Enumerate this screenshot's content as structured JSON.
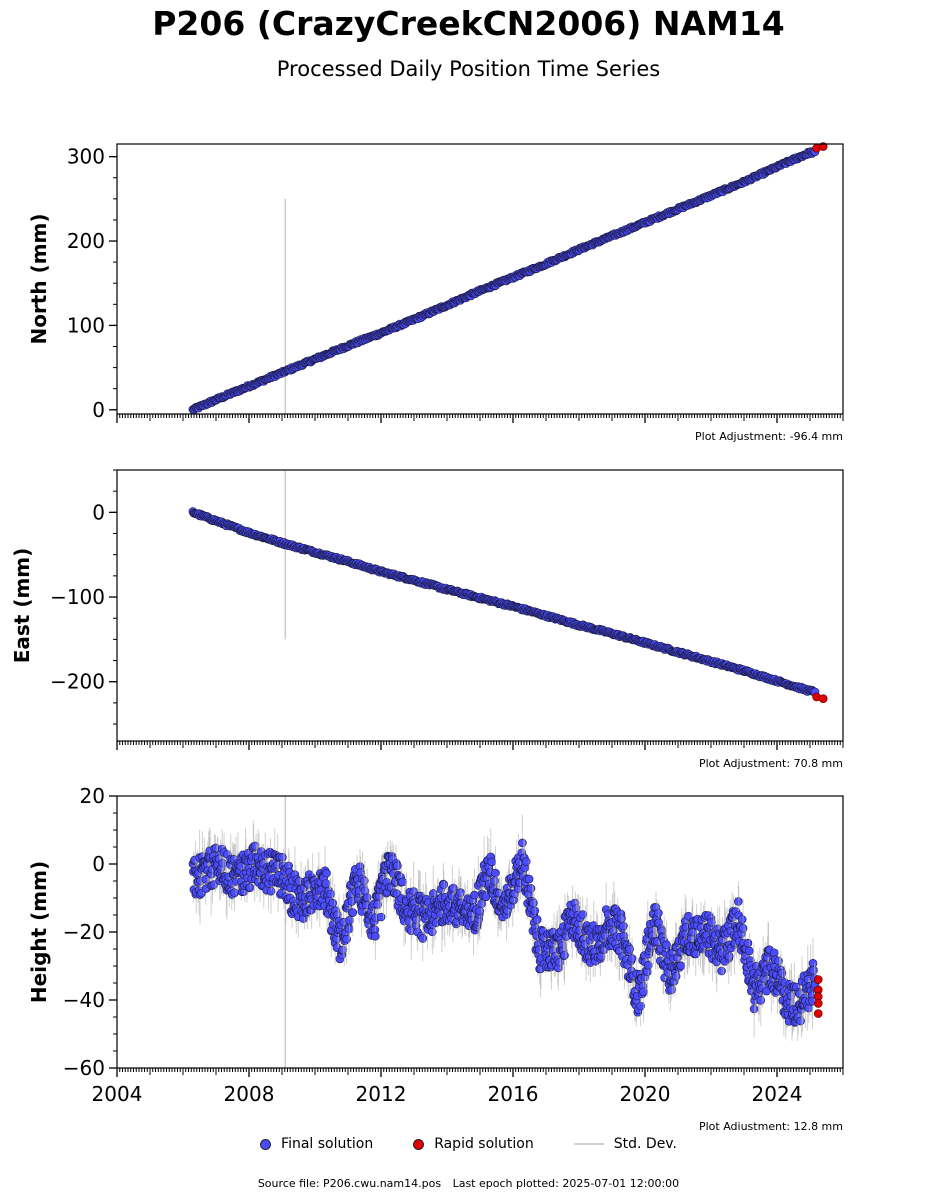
{
  "header": {
    "title": "P206 (CrazyCreekCN2006) NAM14",
    "subtitle": "Processed Daily Position Time Series"
  },
  "legend": {
    "final": "Final solution",
    "rapid": "Rapid solution",
    "std": "Std. Dev."
  },
  "footer": {
    "source": "Source file: P206.cwu.nam14.pos",
    "last_epoch": "Last epoch plotted: 2025-07-01 12:00:00"
  },
  "colors": {
    "final": "#4b4bff",
    "rapid": "#e00000",
    "marker_edge": "#1a1a3a",
    "std_dev": "#b0b0b0"
  },
  "chart_data": [
    {
      "type": "scatter",
      "ylabel": "North (mm)",
      "xlim": [
        2004,
        2026
      ],
      "ylim": [
        -5,
        315
      ],
      "yticks": [
        0,
        100,
        200,
        300
      ],
      "yticklabels": [
        "0",
        "100",
        "200",
        "300"
      ],
      "adjustment": "Plot Adjustment: -96.4 mm",
      "series": [
        {
          "name": "Final solution",
          "x": [
            2006.3,
            2007.0,
            2008.0,
            2009.0,
            2010.0,
            2011.0,
            2012.0,
            2013.0,
            2014.0,
            2015.0,
            2016.0,
            2017.0,
            2018.0,
            2019.0,
            2020.0,
            2021.0,
            2022.0,
            2023.0,
            2024.0,
            2025.0
          ],
          "y": [
            0,
            12,
            28,
            44,
            60,
            76,
            91,
            107,
            124,
            141,
            157,
            173,
            190,
            206,
            222,
            238,
            254,
            270,
            288,
            305
          ]
        },
        {
          "name": "Rapid solution",
          "x": [
            2025.2,
            2025.4
          ],
          "y": [
            310,
            312
          ]
        }
      ],
      "outlier_x": 2009.1,
      "outlier_range": [
        -5,
        250
      ]
    },
    {
      "type": "scatter",
      "ylabel": "East (mm)",
      "xlim": [
        2004,
        2026
      ],
      "ylim": [
        -270,
        50
      ],
      "yticks": [
        0,
        -100,
        -200
      ],
      "yticklabels": [
        "0",
        "−100",
        "−200"
      ],
      "adjustment": "Plot Adjustment: 70.8 mm",
      "series": [
        {
          "name": "Final solution",
          "x": [
            2006.3,
            2007.0,
            2008.0,
            2009.0,
            2010.0,
            2011.0,
            2012.0,
            2013.0,
            2014.0,
            2015.0,
            2016.0,
            2017.0,
            2018.0,
            2019.0,
            2020.0,
            2021.0,
            2022.0,
            2023.0,
            2024.0,
            2025.0
          ],
          "y": [
            0,
            -10,
            -24,
            -36,
            -47,
            -58,
            -70,
            -80,
            -91,
            -101,
            -111,
            -122,
            -133,
            -143,
            -154,
            -165,
            -176,
            -187,
            -199,
            -211
          ]
        },
        {
          "name": "Rapid solution",
          "x": [
            2025.2,
            2025.4
          ],
          "y": [
            -218,
            -220
          ]
        }
      ],
      "outlier_x": 2009.1,
      "outlier_range": [
        -150,
        50
      ]
    },
    {
      "type": "scatter",
      "ylabel": "Height (mm)",
      "xlim": [
        2004,
        2026
      ],
      "ylim": [
        -60,
        20
      ],
      "yticks": [
        20,
        0,
        -20,
        -40,
        -60
      ],
      "yticklabels": [
        "20",
        "0",
        "−20",
        "−40",
        "−60"
      ],
      "xticks": [
        2004,
        2008,
        2012,
        2016,
        2020,
        2024
      ],
      "xticklabels": [
        "2004",
        "2008",
        "2012",
        "2016",
        "2020",
        "2024"
      ],
      "adjustment": "Plot Adjustment: 12.8 mm",
      "series": [
        {
          "name": "Final solution",
          "x": [
            2006.3,
            2006.8,
            2007.3,
            2007.8,
            2008.3,
            2008.8,
            2009.3,
            2009.8,
            2010.3,
            2010.8,
            2011.3,
            2011.8,
            2012.3,
            2012.8,
            2013.3,
            2013.8,
            2014.3,
            2014.8,
            2015.3,
            2015.8,
            2016.3,
            2016.8,
            2017.3,
            2017.8,
            2018.3,
            2018.8,
            2019.3,
            2019.8,
            2020.3,
            2020.8,
            2021.3,
            2021.8,
            2022.3,
            2022.8,
            2023.3,
            2023.8,
            2024.3,
            2024.8
          ],
          "y": [
            -8,
            2,
            -6,
            0,
            -4,
            2,
            -12,
            -6,
            -10,
            -20,
            -8,
            -14,
            -4,
            -10,
            -20,
            -8,
            -16,
            -12,
            -6,
            -10,
            -2,
            -22,
            -30,
            -12,
            -28,
            -16,
            -24,
            -36,
            -20,
            -30,
            -24,
            -16,
            -30,
            -12,
            -40,
            -26,
            -44,
            -36
          ]
        },
        {
          "name": "Rapid solution",
          "x": [
            2025.25,
            2025.25,
            2025.25,
            2025.25,
            2025.25
          ],
          "y": [
            -34,
            -37,
            -39,
            -41,
            -44
          ]
        }
      ],
      "outlier_x": 2009.1,
      "outlier_range": [
        -60,
        20
      ]
    }
  ]
}
